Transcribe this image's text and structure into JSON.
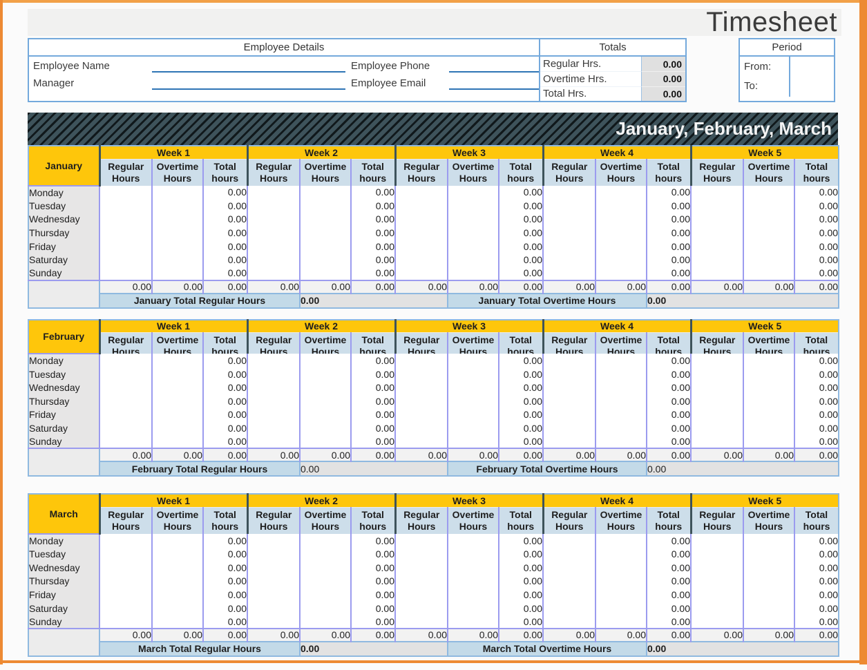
{
  "title": "Timesheet",
  "colors": {
    "orange": "#ed8a33",
    "orange-light": "#f2a149",
    "yellow": "#fec60b",
    "slate": "#3e535b",
    "purple": "#9b9bef",
    "ltblue": "#8fb9e0",
    "boxblue": "#74a9dc",
    "subblue": "#cddeea",
    "lblblue": "#c3dae8",
    "daygray": "#e7e6e6"
  },
  "employee_details": {
    "header": "Employee Details",
    "fields": [
      {
        "label": "Employee Name",
        "value": ""
      },
      {
        "label": "Employee Phone",
        "value": ""
      },
      {
        "label": "Manager",
        "value": ""
      },
      {
        "label": "Employee Email",
        "value": ""
      }
    ]
  },
  "totals": {
    "header": "Totals",
    "rows": [
      {
        "label": "Regular Hrs.",
        "value": "0.00"
      },
      {
        "label": "Overtime Hrs.",
        "value": "0.00"
      },
      {
        "label": "Total Hrs.",
        "value": "0.00"
      }
    ]
  },
  "period": {
    "header": "Period",
    "from_label": "From:",
    "to_label": "To:",
    "from_value": "",
    "to_value": ""
  },
  "banner": {
    "title": "January, February, March"
  },
  "table_structure": {
    "weeks": [
      "Week 1",
      "Week 2",
      "Week 3",
      "Week 4",
      "Week 5"
    ],
    "columns": [
      "Regular Hours",
      "Overtime Hours",
      "Total hours"
    ],
    "days": [
      "Monday",
      "Tuesday",
      "Wednesday",
      "Thursday",
      "Friday",
      "Saturday",
      "Sunday"
    ]
  },
  "months": [
    {
      "name": "January",
      "compact": false,
      "daily_total": "0.00",
      "weekly_total": "0.00",
      "total_regular_label": "January Total Regular Hours",
      "total_regular_value": "0.00",
      "total_overtime_label": "January Total Overtime Hours",
      "total_overtime_value": "0.00",
      "values_bold": true
    },
    {
      "name": "February",
      "compact": true,
      "daily_total": "0.00",
      "weekly_total": "0.00",
      "total_regular_label": "February Total Regular Hours",
      "total_regular_value": "0.00",
      "total_overtime_label": "February Total Overtime Hours",
      "total_overtime_value": "0.00",
      "values_bold": false
    },
    {
      "name": "March",
      "compact": false,
      "daily_total": "0.00",
      "weekly_total": "0.00",
      "total_regular_label": "March Total Regular Hours",
      "total_regular_value": "0.00",
      "total_overtime_label": "March Total Overtime Hours",
      "total_overtime_value": "0.00",
      "values_bold": true
    }
  ]
}
